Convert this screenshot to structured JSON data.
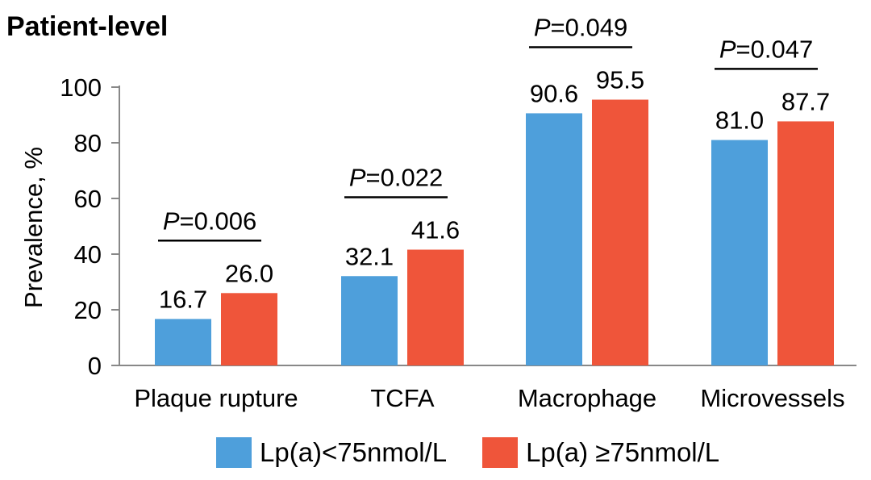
{
  "chart_data": {
    "type": "bar",
    "title": "Patient-level",
    "ylabel": "Prevalence, %",
    "xlabel": "",
    "ylim": [
      0,
      100
    ],
    "yticks": [
      0,
      20,
      40,
      60,
      80,
      100
    ],
    "categories": [
      "Plaque rupture",
      "TCFA",
      "Macrophage",
      "Microvessels"
    ],
    "series": [
      {
        "name": "Lp(a)<75nmol/L",
        "color": "#4e9fdb",
        "values": [
          16.7,
          32.1,
          90.6,
          81.0
        ],
        "labels": [
          "16.7",
          "32.1",
          "90.6",
          "81.0"
        ]
      },
      {
        "name": "Lp(a) ≥75nmol/L",
        "color": "#ef553a",
        "values": [
          26.0,
          41.6,
          95.5,
          87.7
        ],
        "labels": [
          "26.0",
          "41.6",
          "95.5",
          "87.7"
        ]
      }
    ],
    "p_values": [
      {
        "prefix": "P",
        "value": "=0.006"
      },
      {
        "prefix": "P",
        "value": "=0.022"
      },
      {
        "prefix": "P",
        "value": "=0.049"
      },
      {
        "prefix": "P",
        "value": "=0.047"
      }
    ],
    "legend_position": "bottom",
    "grid": false
  }
}
